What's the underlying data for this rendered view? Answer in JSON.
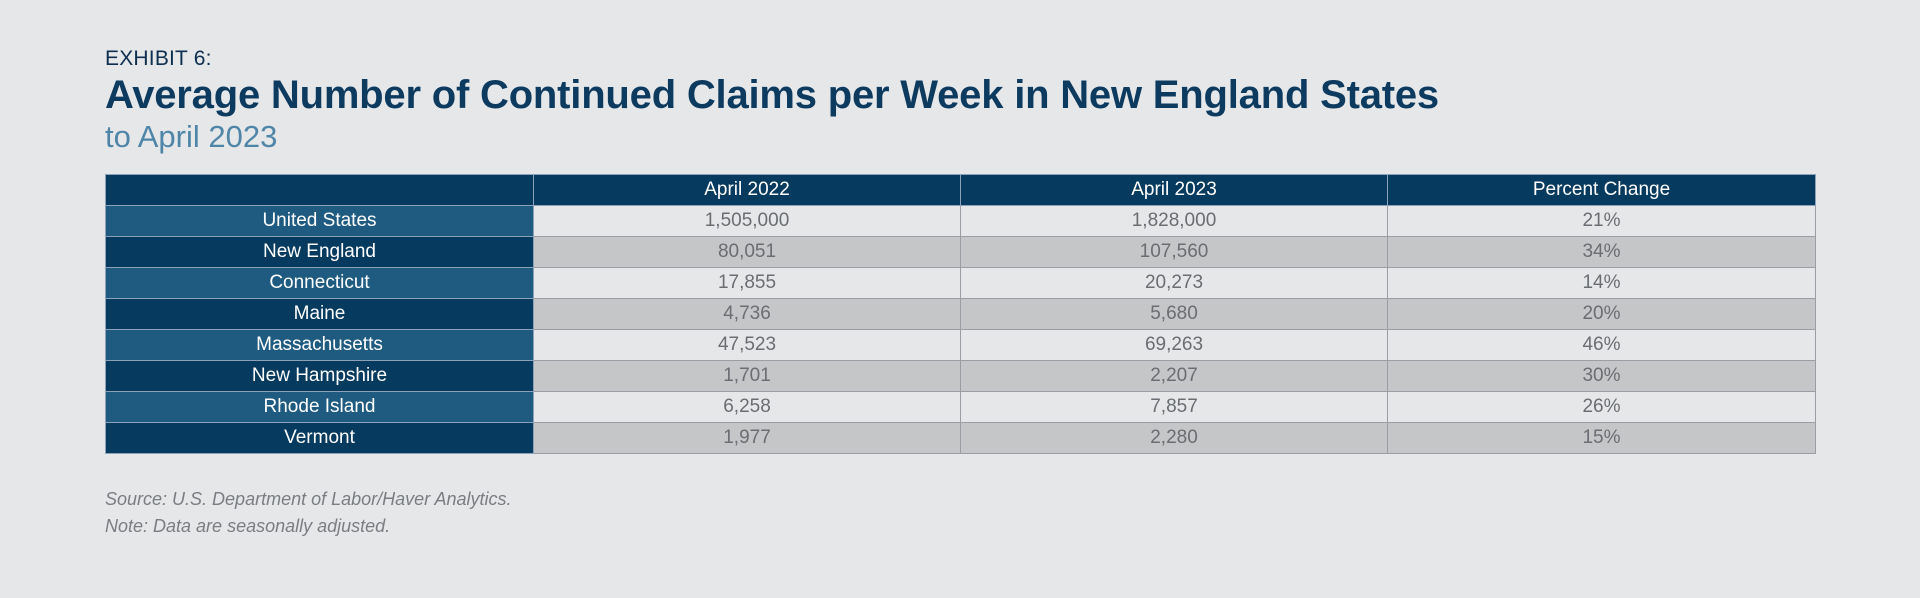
{
  "exhibit": "EXHIBIT 6:",
  "title": "Average Number of Continued Claims per Week in New England States",
  "subtitle": "to April 2023",
  "chart_data": {
    "type": "table",
    "columns": [
      "",
      "April 2022",
      "April 2023",
      "Percent Change"
    ],
    "rows": [
      {
        "label": "United States",
        "values": [
          "1,505,000",
          "1,828,000",
          "21%"
        ]
      },
      {
        "label": "New England",
        "values": [
          "80,051",
          "107,560",
          "34%"
        ]
      },
      {
        "label": "Connecticut",
        "values": [
          "17,855",
          "20,273",
          "14%"
        ]
      },
      {
        "label": "Maine",
        "values": [
          "4,736",
          "5,680",
          "20%"
        ]
      },
      {
        "label": "Massachusetts",
        "values": [
          "47,523",
          "69,263",
          "46%"
        ]
      },
      {
        "label": "New Hampshire",
        "values": [
          "1,701",
          "2,207",
          "30%"
        ]
      },
      {
        "label": "Rhode Island",
        "values": [
          "6,258",
          "7,857",
          "26%"
        ]
      },
      {
        "label": "Vermont",
        "values": [
          "1,977",
          "2,280",
          "15%"
        ]
      }
    ]
  },
  "source": "Source: U.S. Department of Labor/Haver Analytics.",
  "note": "Note: Data are seasonally adjusted.",
  "colors": {
    "background": "#e6e7e9",
    "header_navy": "#063a5e",
    "row_teal": "#1f5b80",
    "title": "#0d3a5f",
    "subtitle": "#4f86a8"
  }
}
